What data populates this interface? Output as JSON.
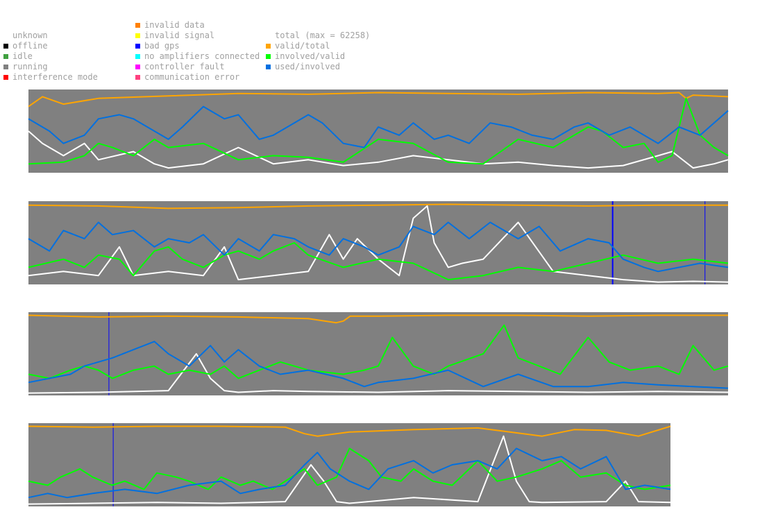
{
  "legend": {
    "column1": [
      {
        "label": "unknown",
        "color": ""
      },
      {
        "label": "offline",
        "color": "#000000"
      },
      {
        "label": "idle",
        "color": "#40a040"
      },
      {
        "label": "running",
        "color": "#808080"
      },
      {
        "label": "interference mode",
        "color": "#ff0000"
      }
    ],
    "column2": [
      {
        "label": "invalid data",
        "color": "#ff8000"
      },
      {
        "label": "invalid signal",
        "color": "#ffff00"
      },
      {
        "label": "bad gps",
        "color": "#0000ff"
      },
      {
        "label": "no amplifiers connected",
        "color": "#00ffff"
      },
      {
        "label": "controller fault",
        "color": "#ff00ff"
      },
      {
        "label": "communication error",
        "color": "#ff4080"
      }
    ],
    "column3": [
      {
        "label": "total (max = 62258)",
        "color": ""
      },
      {
        "label": "valid/total",
        "color": "#ffa500"
      },
      {
        "label": "involved/valid",
        "color": "#00ff00"
      },
      {
        "label": "used/involved",
        "color": "#0070e0"
      }
    ]
  },
  "chart_data": [
    {
      "type": "line",
      "panel": 1,
      "background_state": "running",
      "ylim": [
        0,
        1
      ],
      "bad_gps_markers": [],
      "series": [
        {
          "name": "valid/total",
          "color": "#ffa500",
          "x": [
            0,
            0.02,
            0.05,
            0.1,
            0.2,
            0.3,
            0.4,
            0.5,
            0.6,
            0.7,
            0.8,
            0.9,
            0.93,
            0.94,
            0.95,
            1
          ],
          "y": [
            0.8,
            0.92,
            0.83,
            0.9,
            0.93,
            0.96,
            0.95,
            0.97,
            0.96,
            0.95,
            0.97,
            0.96,
            0.97,
            0.9,
            0.94,
            0.92
          ]
        },
        {
          "name": "involved/valid",
          "color": "#00ff00",
          "x": [
            0,
            0.05,
            0.08,
            0.1,
            0.12,
            0.15,
            0.18,
            0.2,
            0.25,
            0.3,
            0.35,
            0.4,
            0.45,
            0.5,
            0.55,
            0.6,
            0.65,
            0.7,
            0.75,
            0.8,
            0.82,
            0.85,
            0.88,
            0.9,
            0.92,
            0.94,
            0.96,
            0.98,
            1
          ],
          "y": [
            0.1,
            0.12,
            0.2,
            0.35,
            0.3,
            0.2,
            0.4,
            0.3,
            0.35,
            0.15,
            0.2,
            0.18,
            0.12,
            0.4,
            0.35,
            0.12,
            0.1,
            0.4,
            0.3,
            0.55,
            0.5,
            0.3,
            0.35,
            0.12,
            0.2,
            0.9,
            0.45,
            0.3,
            0.2
          ]
        },
        {
          "name": "used/involved",
          "color": "#0070e0",
          "x": [
            0,
            0.03,
            0.05,
            0.08,
            0.1,
            0.13,
            0.15,
            0.17,
            0.2,
            0.22,
            0.25,
            0.28,
            0.3,
            0.33,
            0.35,
            0.38,
            0.4,
            0.42,
            0.45,
            0.48,
            0.5,
            0.53,
            0.55,
            0.58,
            0.6,
            0.63,
            0.66,
            0.69,
            0.72,
            0.75,
            0.78,
            0.8,
            0.83,
            0.86,
            0.9,
            0.93,
            0.96,
            1
          ],
          "y": [
            0.65,
            0.5,
            0.35,
            0.45,
            0.65,
            0.7,
            0.65,
            0.55,
            0.4,
            0.55,
            0.8,
            0.65,
            0.7,
            0.4,
            0.45,
            0.6,
            0.7,
            0.6,
            0.35,
            0.3,
            0.55,
            0.45,
            0.6,
            0.4,
            0.45,
            0.35,
            0.6,
            0.55,
            0.45,
            0.4,
            0.55,
            0.6,
            0.45,
            0.55,
            0.35,
            0.55,
            0.45,
            0.75
          ]
        },
        {
          "name": "total (max = 62258)",
          "color": "#ffffff",
          "x": [
            0,
            0.02,
            0.05,
            0.08,
            0.1,
            0.15,
            0.18,
            0.2,
            0.25,
            0.3,
            0.35,
            0.4,
            0.45,
            0.5,
            0.55,
            0.6,
            0.65,
            0.7,
            0.75,
            0.8,
            0.85,
            0.9,
            0.92,
            0.95,
            0.98,
            1
          ],
          "y": [
            0.5,
            0.35,
            0.2,
            0.35,
            0.15,
            0.25,
            0.1,
            0.05,
            0.1,
            0.3,
            0.1,
            0.15,
            0.08,
            0.12,
            0.2,
            0.15,
            0.1,
            0.12,
            0.08,
            0.05,
            0.08,
            0.2,
            0.25,
            0.05,
            0.1,
            0.15
          ]
        }
      ]
    },
    {
      "type": "line",
      "panel": 2,
      "background_state": "running",
      "ylim": [
        0,
        1
      ],
      "bad_gps_markers": [
        0.835,
        0.967
      ],
      "series": [
        {
          "name": "valid/total",
          "color": "#ffa500",
          "x": [
            0,
            0.1,
            0.2,
            0.3,
            0.4,
            0.5,
            0.6,
            0.7,
            0.8,
            0.9,
            1
          ],
          "y": [
            0.96,
            0.95,
            0.92,
            0.93,
            0.95,
            0.96,
            0.97,
            0.96,
            0.95,
            0.96,
            0.96
          ]
        },
        {
          "name": "involved/valid",
          "color": "#00ff00",
          "x": [
            0,
            0.05,
            0.08,
            0.1,
            0.13,
            0.15,
            0.18,
            0.2,
            0.22,
            0.25,
            0.28,
            0.3,
            0.33,
            0.35,
            0.38,
            0.4,
            0.45,
            0.5,
            0.55,
            0.6,
            0.65,
            0.7,
            0.75,
            0.8,
            0.85,
            0.9,
            0.95,
            1
          ],
          "y": [
            0.2,
            0.3,
            0.2,
            0.35,
            0.3,
            0.1,
            0.4,
            0.45,
            0.3,
            0.2,
            0.35,
            0.4,
            0.3,
            0.4,
            0.5,
            0.35,
            0.2,
            0.3,
            0.25,
            0.05,
            0.1,
            0.2,
            0.15,
            0.25,
            0.35,
            0.25,
            0.3,
            0.25
          ]
        },
        {
          "name": "used/involved",
          "color": "#0070e0",
          "x": [
            0,
            0.03,
            0.05,
            0.08,
            0.1,
            0.12,
            0.15,
            0.18,
            0.2,
            0.23,
            0.25,
            0.28,
            0.3,
            0.33,
            0.35,
            0.38,
            0.4,
            0.43,
            0.45,
            0.48,
            0.5,
            0.53,
            0.55,
            0.58,
            0.6,
            0.63,
            0.66,
            0.7,
            0.73,
            0.76,
            0.8,
            0.83,
            0.85,
            0.88,
            0.9,
            0.93,
            0.96,
            1
          ],
          "y": [
            0.55,
            0.4,
            0.65,
            0.55,
            0.75,
            0.6,
            0.65,
            0.45,
            0.55,
            0.5,
            0.6,
            0.35,
            0.55,
            0.4,
            0.6,
            0.55,
            0.45,
            0.35,
            0.55,
            0.45,
            0.35,
            0.45,
            0.7,
            0.6,
            0.75,
            0.55,
            0.75,
            0.55,
            0.7,
            0.4,
            0.55,
            0.5,
            0.3,
            0.2,
            0.15,
            0.2,
            0.25,
            0.2
          ]
        },
        {
          "name": "total (max = 62258)",
          "color": "#ffffff",
          "x": [
            0,
            0.05,
            0.1,
            0.13,
            0.15,
            0.2,
            0.25,
            0.28,
            0.3,
            0.35,
            0.4,
            0.43,
            0.45,
            0.47,
            0.5,
            0.53,
            0.55,
            0.57,
            0.58,
            0.6,
            0.62,
            0.65,
            0.7,
            0.75,
            0.8,
            0.85,
            0.9,
            0.95,
            1
          ],
          "y": [
            0.1,
            0.15,
            0.1,
            0.45,
            0.1,
            0.15,
            0.1,
            0.45,
            0.05,
            0.1,
            0.15,
            0.6,
            0.3,
            0.55,
            0.3,
            0.1,
            0.8,
            0.95,
            0.5,
            0.2,
            0.25,
            0.3,
            0.75,
            0.15,
            0.1,
            0.05,
            0.02,
            0.03,
            0.02
          ]
        }
      ]
    },
    {
      "type": "line",
      "panel": 3,
      "background_state": "running",
      "ylim": [
        0,
        1
      ],
      "bad_gps_markers": [
        0.115
      ],
      "series": [
        {
          "name": "valid/total",
          "color": "#ffa500",
          "x": [
            0,
            0.1,
            0.2,
            0.3,
            0.4,
            0.44,
            0.45,
            0.46,
            0.5,
            0.6,
            0.7,
            0.8,
            0.9,
            1
          ],
          "y": [
            0.97,
            0.95,
            0.96,
            0.95,
            0.93,
            0.88,
            0.9,
            0.96,
            0.96,
            0.97,
            0.97,
            0.96,
            0.97,
            0.97
          ]
        },
        {
          "name": "involved/valid",
          "color": "#00ff00",
          "x": [
            0,
            0.03,
            0.06,
            0.08,
            0.1,
            0.12,
            0.15,
            0.18,
            0.2,
            0.23,
            0.26,
            0.28,
            0.3,
            0.33,
            0.36,
            0.4,
            0.45,
            0.48,
            0.5,
            0.52,
            0.55,
            0.58,
            0.6,
            0.65,
            0.68,
            0.7,
            0.73,
            0.76,
            0.8,
            0.83,
            0.86,
            0.9,
            0.93,
            0.95,
            0.98,
            1
          ],
          "y": [
            0.25,
            0.2,
            0.3,
            0.35,
            0.3,
            0.2,
            0.3,
            0.35,
            0.25,
            0.3,
            0.25,
            0.35,
            0.2,
            0.3,
            0.4,
            0.3,
            0.25,
            0.3,
            0.35,
            0.7,
            0.35,
            0.25,
            0.35,
            0.5,
            0.85,
            0.45,
            0.35,
            0.25,
            0.7,
            0.4,
            0.3,
            0.35,
            0.25,
            0.6,
            0.3,
            0.35
          ]
        },
        {
          "name": "used/involved",
          "color": "#0070e0",
          "x": [
            0,
            0.03,
            0.06,
            0.08,
            0.1,
            0.12,
            0.15,
            0.18,
            0.2,
            0.23,
            0.26,
            0.28,
            0.3,
            0.33,
            0.36,
            0.4,
            0.45,
            0.48,
            0.5,
            0.55,
            0.6,
            0.65,
            0.7,
            0.75,
            0.8,
            0.85,
            0.9,
            0.95,
            1
          ],
          "y": [
            0.15,
            0.2,
            0.25,
            0.35,
            0.4,
            0.45,
            0.55,
            0.65,
            0.5,
            0.35,
            0.6,
            0.4,
            0.55,
            0.35,
            0.25,
            0.3,
            0.2,
            0.1,
            0.15,
            0.2,
            0.3,
            0.1,
            0.25,
            0.1,
            0.1,
            0.15,
            0.12,
            0.1,
            0.08
          ]
        },
        {
          "name": "total (max = 62258)",
          "color": "#ffffff",
          "x": [
            0,
            0.1,
            0.2,
            0.24,
            0.26,
            0.28,
            0.3,
            0.35,
            0.4,
            0.5,
            0.6,
            0.7,
            0.8,
            0.9,
            1
          ],
          "y": [
            0.02,
            0.03,
            0.05,
            0.5,
            0.2,
            0.05,
            0.03,
            0.05,
            0.04,
            0.03,
            0.05,
            0.04,
            0.03,
            0.04,
            0.03
          ]
        }
      ]
    },
    {
      "type": "line",
      "panel": 4,
      "background_state": "running",
      "ylim": [
        0,
        1
      ],
      "bad_gps_markers": [
        0.132
      ],
      "series": [
        {
          "name": "valid/total",
          "color": "#ffa500",
          "x": [
            0,
            0.1,
            0.2,
            0.3,
            0.4,
            0.43,
            0.45,
            0.5,
            0.6,
            0.7,
            0.75,
            0.8,
            0.85,
            0.9,
            0.95,
            1
          ],
          "y": [
            0.97,
            0.96,
            0.97,
            0.97,
            0.96,
            0.88,
            0.85,
            0.9,
            0.93,
            0.95,
            0.9,
            0.85,
            0.93,
            0.92,
            0.85,
            0.97
          ]
        },
        {
          "name": "involved/valid",
          "color": "#00ff00",
          "x": [
            0,
            0.03,
            0.05,
            0.08,
            0.1,
            0.13,
            0.15,
            0.18,
            0.2,
            0.23,
            0.25,
            0.28,
            0.3,
            0.33,
            0.35,
            0.38,
            0.4,
            0.43,
            0.45,
            0.48,
            0.5,
            0.53,
            0.55,
            0.58,
            0.6,
            0.63,
            0.66,
            0.7,
            0.73,
            0.76,
            0.8,
            0.83,
            0.86,
            0.9,
            0.93,
            0.96,
            1
          ],
          "y": [
            0.3,
            0.25,
            0.35,
            0.45,
            0.35,
            0.25,
            0.3,
            0.2,
            0.4,
            0.35,
            0.3,
            0.2,
            0.35,
            0.25,
            0.3,
            0.2,
            0.3,
            0.45,
            0.25,
            0.35,
            0.7,
            0.55,
            0.35,
            0.3,
            0.45,
            0.3,
            0.25,
            0.55,
            0.3,
            0.35,
            0.45,
            0.55,
            0.35,
            0.4,
            0.25,
            0.2,
            0.25
          ]
        },
        {
          "name": "used/involved",
          "color": "#0070e0",
          "x": [
            0,
            0.03,
            0.06,
            0.1,
            0.15,
            0.2,
            0.25,
            0.3,
            0.33,
            0.36,
            0.4,
            0.43,
            0.45,
            0.47,
            0.5,
            0.53,
            0.56,
            0.6,
            0.63,
            0.66,
            0.7,
            0.73,
            0.76,
            0.8,
            0.83,
            0.86,
            0.9,
            0.93,
            0.96,
            1
          ],
          "y": [
            0.1,
            0.15,
            0.1,
            0.15,
            0.2,
            0.15,
            0.25,
            0.3,
            0.15,
            0.2,
            0.25,
            0.5,
            0.65,
            0.45,
            0.3,
            0.2,
            0.45,
            0.55,
            0.4,
            0.5,
            0.55,
            0.45,
            0.7,
            0.55,
            0.6,
            0.45,
            0.6,
            0.2,
            0.25,
            0.2
          ]
        },
        {
          "name": "total (max = 62258)",
          "color": "#ffffff",
          "x": [
            0,
            0.1,
            0.2,
            0.3,
            0.4,
            0.44,
            0.46,
            0.48,
            0.5,
            0.6,
            0.7,
            0.74,
            0.76,
            0.78,
            0.8,
            0.9,
            0.93,
            0.95,
            1
          ],
          "y": [
            0.02,
            0.03,
            0.04,
            0.03,
            0.05,
            0.5,
            0.3,
            0.05,
            0.03,
            0.1,
            0.05,
            0.85,
            0.3,
            0.05,
            0.04,
            0.05,
            0.3,
            0.05,
            0.04
          ]
        }
      ]
    }
  ]
}
